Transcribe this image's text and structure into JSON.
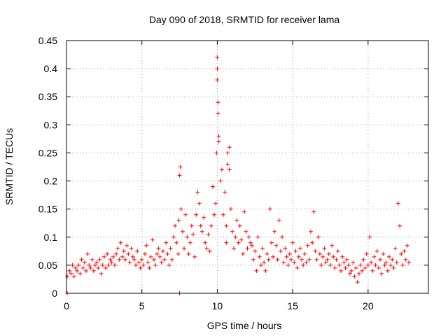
{
  "chart_data": {
    "type": "scatter",
    "title": "Day 090 of 2018, SRMTID for receiver lama",
    "xlabel": "GPS time / hours",
    "ylabel": "SRMTID / TECUs",
    "xlim": [
      0,
      24
    ],
    "ylim": [
      0,
      0.45
    ],
    "xticks": [
      0,
      5,
      10,
      15,
      20
    ],
    "xtick_labels": [
      "0",
      "5",
      "10",
      "15",
      "20"
    ],
    "yticks": [
      0,
      0.05,
      0.1,
      0.15,
      0.2,
      0.25,
      0.3,
      0.35,
      0.4,
      0.45
    ],
    "ytick_labels": [
      "0",
      "0.05",
      "0.1",
      "0.15",
      "0.2",
      "0.25",
      "0.3",
      "0.35",
      "0.4",
      "0.45"
    ],
    "grid": true,
    "series": [
      {
        "name": "SRMTID",
        "color": "#ff0000",
        "marker": "plus",
        "x": [
          0.05,
          0.05,
          0.2,
          0.3,
          0.4,
          0.5,
          0.6,
          0.7,
          0.8,
          0.9,
          1.0,
          1.1,
          1.2,
          1.3,
          1.4,
          1.5,
          1.6,
          1.7,
          1.8,
          1.9,
          2.0,
          2.1,
          2.2,
          2.3,
          2.4,
          2.5,
          2.6,
          2.7,
          2.8,
          2.9,
          3.0,
          3.1,
          3.2,
          3.3,
          3.4,
          3.5,
          3.6,
          3.7,
          3.8,
          3.9,
          4.0,
          4.1,
          4.2,
          4.3,
          4.4,
          4.5,
          4.6,
          4.7,
          4.8,
          4.9,
          5.0,
          5.1,
          5.2,
          5.3,
          5.4,
          5.5,
          5.6,
          5.7,
          5.8,
          5.9,
          6.0,
          6.1,
          6.2,
          6.3,
          6.4,
          6.5,
          6.6,
          6.7,
          6.8,
          6.9,
          7.0,
          7.1,
          7.2,
          7.3,
          7.4,
          7.45,
          7.5,
          7.5,
          7.55,
          7.6,
          7.7,
          7.8,
          7.9,
          8.0,
          8.1,
          8.2,
          8.3,
          8.4,
          8.5,
          8.6,
          8.7,
          8.8,
          8.9,
          9.0,
          9.1,
          9.2,
          9.3,
          9.4,
          9.5,
          9.6,
          9.7,
          9.8,
          9.9,
          9.95,
          10.0,
          10.0,
          10.0,
          10.05,
          10.05,
          10.1,
          10.1,
          10.2,
          10.3,
          10.4,
          10.5,
          10.6,
          10.6,
          10.7,
          10.7,
          10.8,
          10.8,
          10.9,
          11.0,
          11.1,
          11.2,
          11.3,
          11.4,
          11.5,
          11.6,
          11.7,
          11.8,
          11.9,
          12.0,
          12.1,
          12.2,
          12.3,
          12.4,
          12.5,
          12.6,
          12.7,
          12.8,
          12.9,
          13.0,
          13.1,
          13.2,
          13.3,
          13.4,
          13.5,
          13.6,
          13.7,
          13.8,
          13.9,
          14.0,
          14.1,
          14.2,
          14.3,
          14.4,
          14.5,
          14.6,
          14.7,
          14.8,
          14.9,
          15.0,
          15.1,
          15.2,
          15.3,
          15.4,
          15.5,
          15.6,
          15.7,
          15.8,
          15.9,
          16.0,
          16.1,
          16.2,
          16.3,
          16.4,
          16.5,
          16.6,
          16.7,
          16.8,
          16.9,
          17.0,
          17.1,
          17.2,
          17.3,
          17.4,
          17.5,
          17.6,
          17.7,
          17.8,
          17.9,
          18.0,
          18.1,
          18.2,
          18.3,
          18.4,
          18.5,
          18.6,
          18.7,
          18.8,
          18.9,
          19.0,
          19.1,
          19.2,
          19.3,
          19.4,
          19.5,
          19.6,
          19.7,
          19.8,
          19.9,
          20.0,
          20.1,
          20.2,
          20.3,
          20.4,
          20.5,
          20.6,
          20.7,
          20.8,
          20.9,
          21.0,
          21.1,
          21.2,
          21.3,
          21.4,
          21.5,
          21.6,
          21.7,
          21.8,
          21.9,
          22.0,
          22.1,
          22.2,
          22.3,
          22.4,
          22.5,
          22.6,
          22.7
        ],
        "y": [
          0.0,
          0.03,
          0.04,
          0.035,
          0.05,
          0.03,
          0.045,
          0.04,
          0.05,
          0.035,
          0.06,
          0.045,
          0.055,
          0.04,
          0.07,
          0.05,
          0.045,
          0.06,
          0.04,
          0.05,
          0.055,
          0.045,
          0.06,
          0.035,
          0.05,
          0.065,
          0.045,
          0.07,
          0.05,
          0.06,
          0.055,
          0.065,
          0.05,
          0.07,
          0.08,
          0.06,
          0.09,
          0.065,
          0.075,
          0.06,
          0.085,
          0.07,
          0.055,
          0.08,
          0.065,
          0.06,
          0.05,
          0.075,
          0.055,
          0.045,
          0.06,
          0.05,
          0.07,
          0.085,
          0.055,
          0.045,
          0.065,
          0.095,
          0.06,
          0.05,
          0.07,
          0.08,
          0.065,
          0.055,
          0.075,
          0.06,
          0.09,
          0.07,
          0.05,
          0.08,
          0.06,
          0.1,
          0.12,
          0.09,
          0.07,
          0.13,
          0.21,
          0.0,
          0.225,
          0.15,
          0.11,
          0.08,
          0.14,
          0.1,
          0.07,
          0.09,
          0.12,
          0.105,
          0.065,
          0.14,
          0.18,
          0.16,
          0.12,
          0.11,
          0.135,
          0.09,
          0.08,
          0.105,
          0.075,
          0.12,
          0.19,
          0.14,
          0.16,
          0.25,
          0.38,
          0.42,
          0.4,
          0.32,
          0.34,
          0.27,
          0.28,
          0.2,
          0.22,
          0.14,
          0.18,
          0.12,
          0.09,
          0.25,
          0.23,
          0.26,
          0.22,
          0.15,
          0.11,
          0.08,
          0.1,
          0.13,
          0.09,
          0.12,
          0.095,
          0.07,
          0.145,
          0.11,
          0.08,
          0.1,
          0.09,
          0.085,
          0.06,
          0.075,
          0.04,
          0.1,
          0.065,
          0.05,
          0.08,
          0.055,
          0.04,
          0.07,
          0.06,
          0.15,
          0.09,
          0.065,
          0.11,
          0.085,
          0.06,
          0.13,
          0.075,
          0.1,
          0.055,
          0.08,
          0.065,
          0.05,
          0.07,
          0.06,
          0.09,
          0.055,
          0.075,
          0.045,
          0.065,
          0.08,
          0.06,
          0.05,
          0.07,
          0.055,
          0.085,
          0.06,
          0.11,
          0.09,
          0.145,
          0.075,
          0.06,
          0.1,
          0.07,
          0.05,
          0.065,
          0.08,
          0.055,
          0.06,
          0.07,
          0.05,
          0.085,
          0.065,
          0.045,
          0.06,
          0.075,
          0.05,
          0.04,
          0.065,
          0.055,
          0.045,
          0.06,
          0.05,
          0.035,
          0.04,
          0.055,
          0.03,
          0.045,
          0.02,
          0.035,
          0.05,
          0.04,
          0.06,
          0.045,
          0.07,
          0.05,
          0.1,
          0.055,
          0.04,
          0.065,
          0.05,
          0.075,
          0.045,
          0.06,
          0.035,
          0.07,
          0.05,
          0.055,
          0.04,
          0.065,
          0.05,
          0.06,
          0.045,
          0.08,
          0.055,
          0.16,
          0.12,
          0.07,
          0.05,
          0.075,
          0.06,
          0.085,
          0.055
        ]
      }
    ]
  }
}
